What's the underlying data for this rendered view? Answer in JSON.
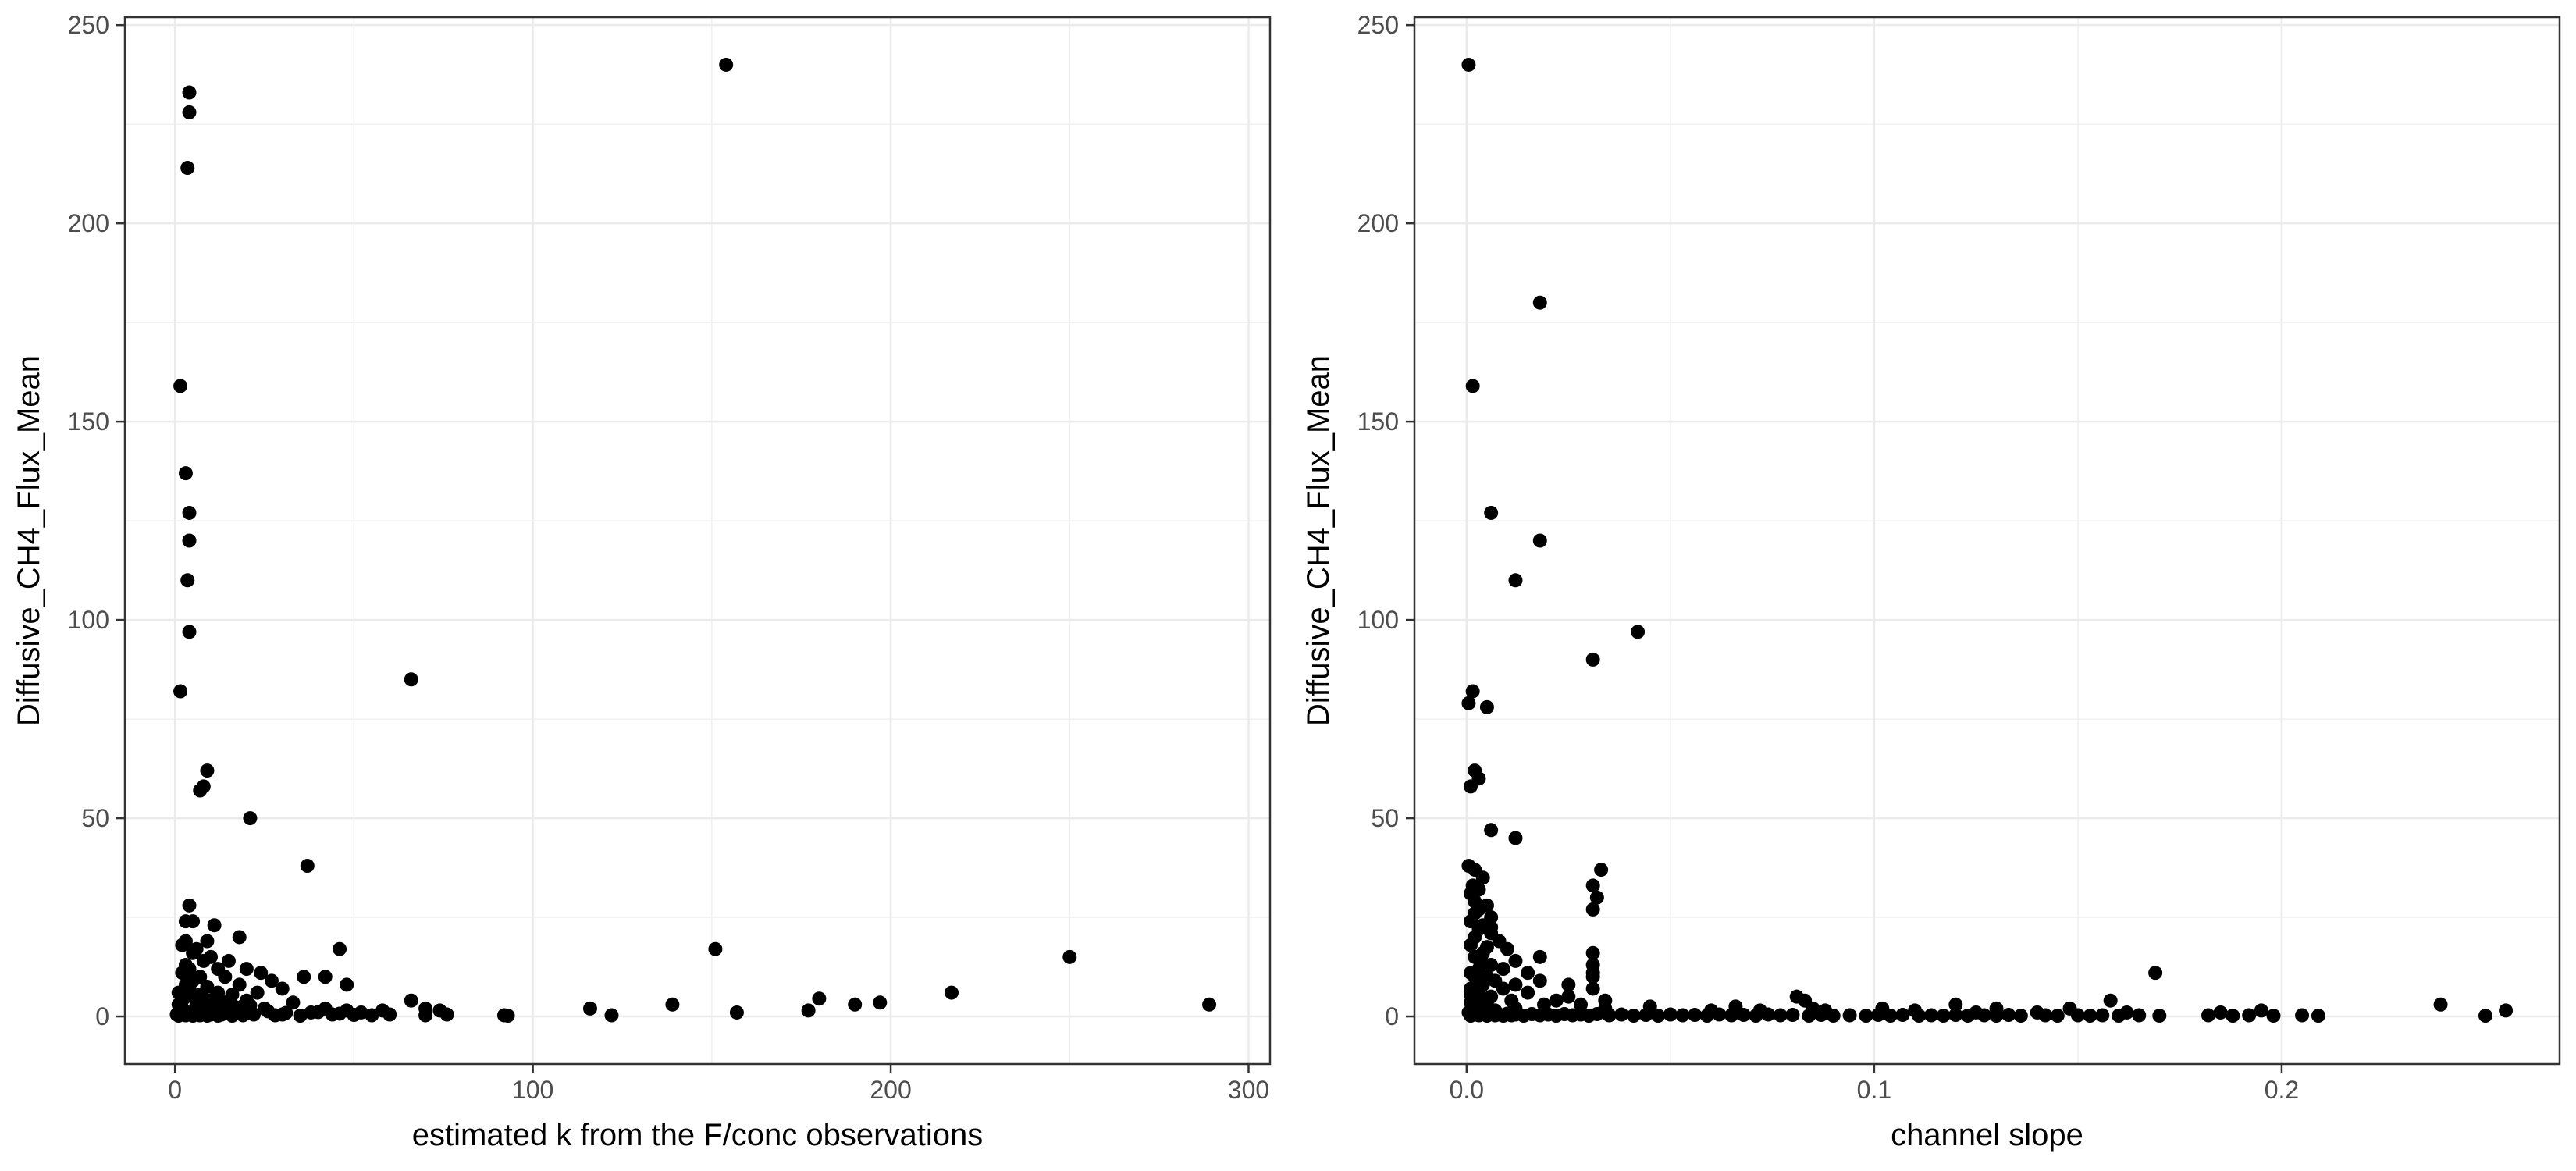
{
  "chart_data": [
    {
      "type": "scatter",
      "title": "",
      "xlabel": "estimated k from the F/conc observations",
      "ylabel": "Diffusive_CH4_Flux_Mean",
      "xlim": [
        -14,
        306
      ],
      "ylim": [
        -12,
        252
      ],
      "xticks": [
        0,
        100,
        200,
        300
      ],
      "yticks": [
        0,
        50,
        100,
        150,
        200,
        250
      ],
      "xtick_labels": [
        "0",
        "100",
        "200",
        "300"
      ],
      "ytick_labels": [
        "0",
        "50",
        "100",
        "150",
        "200",
        "250"
      ],
      "grid": true,
      "legend": "none",
      "point_color": "#000000",
      "points": [
        [
          154,
          240
        ],
        [
          4,
          233
        ],
        [
          4,
          228
        ],
        [
          3.5,
          214
        ],
        [
          1.5,
          159
        ],
        [
          3,
          137
        ],
        [
          4,
          127
        ],
        [
          4,
          120
        ],
        [
          3.5,
          110
        ],
        [
          4,
          97
        ],
        [
          1.5,
          82
        ],
        [
          66,
          85
        ],
        [
          9,
          62
        ],
        [
          8,
          58
        ],
        [
          7,
          57
        ],
        [
          21,
          50
        ],
        [
          37,
          38
        ],
        [
          4,
          28
        ],
        [
          3,
          24
        ],
        [
          5,
          24
        ],
        [
          11,
          23
        ],
        [
          18,
          20
        ],
        [
          3,
          19
        ],
        [
          9,
          19
        ],
        [
          2,
          18
        ],
        [
          6,
          17
        ],
        [
          46,
          17
        ],
        [
          151,
          17
        ],
        [
          5,
          16
        ],
        [
          10,
          15
        ],
        [
          250,
          15
        ],
        [
          15,
          14
        ],
        [
          8,
          14
        ],
        [
          3,
          13
        ],
        [
          12,
          12
        ],
        [
          20,
          12
        ],
        [
          4,
          12
        ],
        [
          24,
          11
        ],
        [
          2,
          11
        ],
        [
          42,
          10
        ],
        [
          14,
          10
        ],
        [
          36,
          10
        ],
        [
          7,
          10
        ],
        [
          27,
          9
        ],
        [
          48,
          8
        ],
        [
          3,
          8
        ],
        [
          18,
          8
        ],
        [
          30,
          7
        ],
        [
          217,
          6
        ],
        [
          23,
          6
        ],
        [
          12,
          6
        ],
        [
          1,
          6
        ],
        [
          5,
          5
        ],
        [
          66,
          4
        ],
        [
          180,
          4.5
        ],
        [
          9,
          4
        ],
        [
          6,
          4
        ],
        [
          20,
          4
        ],
        [
          33,
          3.5
        ],
        [
          139,
          3
        ],
        [
          197,
          3.5
        ],
        [
          190,
          3
        ],
        [
          289,
          3
        ],
        [
          70,
          2
        ],
        [
          42,
          2
        ],
        [
          15,
          3
        ],
        [
          116,
          2
        ],
        [
          177,
          1.5
        ],
        [
          74,
          1.5
        ],
        [
          48,
          1.5
        ],
        [
          58,
          1.5
        ],
        [
          38,
          1
        ],
        [
          52,
          1
        ],
        [
          157,
          1
        ],
        [
          2,
          2
        ],
        [
          25,
          2
        ],
        [
          11,
          1
        ],
        [
          122,
          0.3
        ],
        [
          92,
          0.3
        ],
        [
          93,
          0.2
        ],
        [
          76,
          0.5
        ],
        [
          70,
          0.3
        ],
        [
          60,
          0.5
        ],
        [
          55,
          0.3
        ],
        [
          44,
          0.5
        ],
        [
          35,
          0.2
        ],
        [
          30,
          0.5
        ],
        [
          28,
          0.3
        ],
        [
          22,
          0.5
        ],
        [
          19,
          0.3
        ],
        [
          17,
          0.8
        ],
        [
          16,
          0.2
        ],
        [
          13,
          0.5
        ],
        [
          12,
          0.2
        ],
        [
          10,
          0.5
        ],
        [
          9,
          0.2
        ],
        [
          8,
          0.6
        ],
        [
          7,
          0.3
        ],
        [
          6,
          0.8
        ],
        [
          5,
          0.2
        ],
        [
          4,
          0.5
        ],
        [
          3,
          0.3
        ],
        [
          2,
          0.6
        ],
        [
          1,
          0.2
        ],
        [
          0.5,
          0.5
        ],
        [
          1.5,
          1.2
        ],
        [
          2.5,
          1.5
        ],
        [
          3.5,
          1
        ],
        [
          4.5,
          0.9
        ],
        [
          5.5,
          1.3
        ],
        [
          6.5,
          1.8
        ],
        [
          7.5,
          0.7
        ],
        [
          8.5,
          1.1
        ],
        [
          10.5,
          1.6
        ],
        [
          12.5,
          2.2
        ],
        [
          14.5,
          1.4
        ],
        [
          16.5,
          2.5
        ],
        [
          18.5,
          1.9
        ],
        [
          21,
          2.8
        ],
        [
          26,
          1.3
        ],
        [
          31,
          0.9
        ],
        [
          40,
          1.1
        ],
        [
          46,
          0.7
        ],
        [
          50,
          0.4
        ],
        [
          1,
          3
        ],
        [
          2,
          4
        ],
        [
          3,
          5
        ],
        [
          4,
          7
        ],
        [
          5,
          9
        ],
        [
          6,
          3
        ],
        [
          7,
          5.5
        ],
        [
          8,
          2.5
        ],
        [
          9,
          7.5
        ],
        [
          10,
          3.2
        ],
        [
          11,
          4.5
        ],
        [
          13,
          3.8
        ],
        [
          16,
          5.5
        ],
        [
          19,
          2.6
        ]
      ]
    },
    {
      "type": "scatter",
      "title": "",
      "xlabel": "channel slope",
      "ylabel": "Diffusive_CH4_Flux_Mean",
      "xlim": [
        -0.0128,
        0.2682
      ],
      "ylim": [
        -12,
        252
      ],
      "xticks": [
        0,
        0.1,
        0.2
      ],
      "yticks": [
        0,
        50,
        100,
        150,
        200,
        250
      ],
      "xtick_labels": [
        "0.0",
        "0.1",
        "0.2"
      ],
      "ytick_labels": [
        "0",
        "50",
        "100",
        "150",
        "200",
        "250"
      ],
      "grid": true,
      "legend": "none",
      "point_color": "#000000",
      "points": [
        [
          0.0005,
          240
        ],
        [
          0.018,
          180
        ],
        [
          0.0015,
          159
        ],
        [
          0.006,
          127
        ],
        [
          0.018,
          120
        ],
        [
          0.012,
          110
        ],
        [
          0.042,
          97
        ],
        [
          0.031,
          90
        ],
        [
          0.0015,
          82
        ],
        [
          0.0005,
          79
        ],
        [
          0.005,
          78
        ],
        [
          0.002,
          62
        ],
        [
          0.003,
          60
        ],
        [
          0.001,
          58
        ],
        [
          0.006,
          47
        ],
        [
          0.012,
          45
        ],
        [
          0.0005,
          38
        ],
        [
          0.002,
          37
        ],
        [
          0.033,
          37
        ],
        [
          0.004,
          35
        ],
        [
          0.031,
          33
        ],
        [
          0.003,
          32
        ],
        [
          0.001,
          31
        ],
        [
          0.032,
          30
        ],
        [
          0.005,
          28
        ],
        [
          0.031,
          27
        ],
        [
          0.002,
          26
        ],
        [
          0.006,
          25
        ],
        [
          0.001,
          24
        ],
        [
          0.004,
          23
        ],
        [
          0.003,
          22
        ],
        [
          0.006,
          21
        ],
        [
          0.002,
          20
        ],
        [
          0.008,
          19
        ],
        [
          0.001,
          18
        ],
        [
          0.01,
          17
        ],
        [
          0.031,
          16
        ],
        [
          0.004,
          16
        ],
        [
          0.018,
          15
        ],
        [
          0.002,
          15
        ],
        [
          0.012,
          14
        ],
        [
          0.031,
          13
        ],
        [
          0.006,
          13
        ],
        [
          0.003,
          12
        ],
        [
          0.009,
          12
        ],
        [
          0.001,
          11
        ],
        [
          0.031,
          11
        ],
        [
          0.015,
          11
        ],
        [
          0.005,
          10
        ],
        [
          0.031,
          10
        ],
        [
          0.169,
          11
        ],
        [
          0.002,
          10
        ],
        [
          0.007,
          9
        ],
        [
          0.018,
          9
        ],
        [
          0.004,
          8
        ],
        [
          0.025,
          8
        ],
        [
          0.012,
          8
        ],
        [
          0.001,
          7
        ],
        [
          0.031,
          7
        ],
        [
          0.009,
          7
        ],
        [
          0.003,
          6
        ],
        [
          0.015,
          6
        ],
        [
          0.002,
          5
        ],
        [
          0.025,
          5
        ],
        [
          0.081,
          5
        ],
        [
          0.006,
          5
        ],
        [
          0.083,
          4
        ],
        [
          0.034,
          4
        ],
        [
          0.158,
          4
        ],
        [
          0.011,
          4
        ],
        [
          0.022,
          4
        ],
        [
          0.239,
          3
        ],
        [
          0.12,
          3
        ],
        [
          0.028,
          3
        ],
        [
          0.005,
          3
        ],
        [
          0.019,
          3
        ],
        [
          0.045,
          2.5
        ],
        [
          0.066,
          2.5
        ],
        [
          0.085,
          2
        ],
        [
          0.102,
          2
        ],
        [
          0.13,
          2
        ],
        [
          0.148,
          2
        ],
        [
          0.195,
          1.5
        ],
        [
          0.255,
          1.5
        ],
        [
          0.034,
          2
        ],
        [
          0.012,
          2
        ],
        [
          0.06,
          1.5
        ],
        [
          0.072,
          1.5
        ],
        [
          0.088,
          1.5
        ],
        [
          0.11,
          1.5
        ],
        [
          0.125,
          1
        ],
        [
          0.14,
          1
        ],
        [
          0.162,
          1
        ],
        [
          0.185,
          1
        ],
        [
          0.007,
          1.5
        ],
        [
          0.002,
          2.5
        ],
        [
          0.001,
          3.5
        ],
        [
          0.004,
          4
        ],
        [
          0.0005,
          1
        ],
        [
          0.001,
          0.2
        ],
        [
          0.002,
          0.5
        ],
        [
          0.003,
          0.3
        ],
        [
          0.004,
          0.8
        ],
        [
          0.005,
          0.2
        ],
        [
          0.006,
          0.6
        ],
        [
          0.007,
          0.3
        ],
        [
          0.008,
          0.5
        ],
        [
          0.009,
          0.2
        ],
        [
          0.01,
          0.7
        ],
        [
          0.011,
          0.3
        ],
        [
          0.012,
          0.5
        ],
        [
          0.014,
          0.2
        ],
        [
          0.016,
          0.6
        ],
        [
          0.018,
          0.3
        ],
        [
          0.02,
          0.5
        ],
        [
          0.022,
          0.2
        ],
        [
          0.024,
          0.6
        ],
        [
          0.026,
          0.3
        ],
        [
          0.028,
          0.5
        ],
        [
          0.03,
          0.2
        ],
        [
          0.032,
          0.6
        ],
        [
          0.035,
          0.3
        ],
        [
          0.038,
          0.5
        ],
        [
          0.041,
          0.2
        ],
        [
          0.044,
          0.4
        ],
        [
          0.047,
          0.2
        ],
        [
          0.05,
          0.5
        ],
        [
          0.053,
          0.3
        ],
        [
          0.056,
          0.4
        ],
        [
          0.059,
          0.2
        ],
        [
          0.062,
          0.5
        ],
        [
          0.065,
          0.3
        ],
        [
          0.068,
          0.4
        ],
        [
          0.071,
          0.2
        ],
        [
          0.074,
          0.5
        ],
        [
          0.077,
          0.3
        ],
        [
          0.08,
          0.4
        ],
        [
          0.084,
          0.2
        ],
        [
          0.087,
          0.4
        ],
        [
          0.09,
          0.2
        ],
        [
          0.094,
          0.3
        ],
        [
          0.098,
          0.2
        ],
        [
          0.101,
          0.4
        ],
        [
          0.104,
          0.2
        ],
        [
          0.107,
          0.4
        ],
        [
          0.111,
          0.2
        ],
        [
          0.114,
          0.3
        ],
        [
          0.117,
          0.2
        ],
        [
          0.12,
          0.4
        ],
        [
          0.123,
          0.2
        ],
        [
          0.127,
          0.3
        ],
        [
          0.13,
          0.2
        ],
        [
          0.133,
          0.4
        ],
        [
          0.136,
          0.2
        ],
        [
          0.142,
          0.3
        ],
        [
          0.145,
          0.2
        ],
        [
          0.15,
          0.3
        ],
        [
          0.153,
          0.2
        ],
        [
          0.156,
          0.3
        ],
        [
          0.16,
          0.2
        ],
        [
          0.165,
          0.3
        ],
        [
          0.17,
          0.2
        ],
        [
          0.182,
          0.3
        ],
        [
          0.188,
          0.2
        ],
        [
          0.192,
          0.3
        ],
        [
          0.198,
          0.2
        ],
        [
          0.205,
          0.3
        ],
        [
          0.209,
          0.2
        ],
        [
          0.25,
          0.2
        ],
        [
          0.001,
          5.5
        ],
        [
          0.002,
          7.5
        ],
        [
          0.003,
          9.5
        ],
        [
          0.004,
          13.5
        ],
        [
          0.005,
          17.5
        ],
        [
          0.006,
          22.5
        ],
        [
          0.003,
          27
        ],
        [
          0.002,
          29
        ],
        [
          0.0015,
          33
        ]
      ]
    }
  ]
}
